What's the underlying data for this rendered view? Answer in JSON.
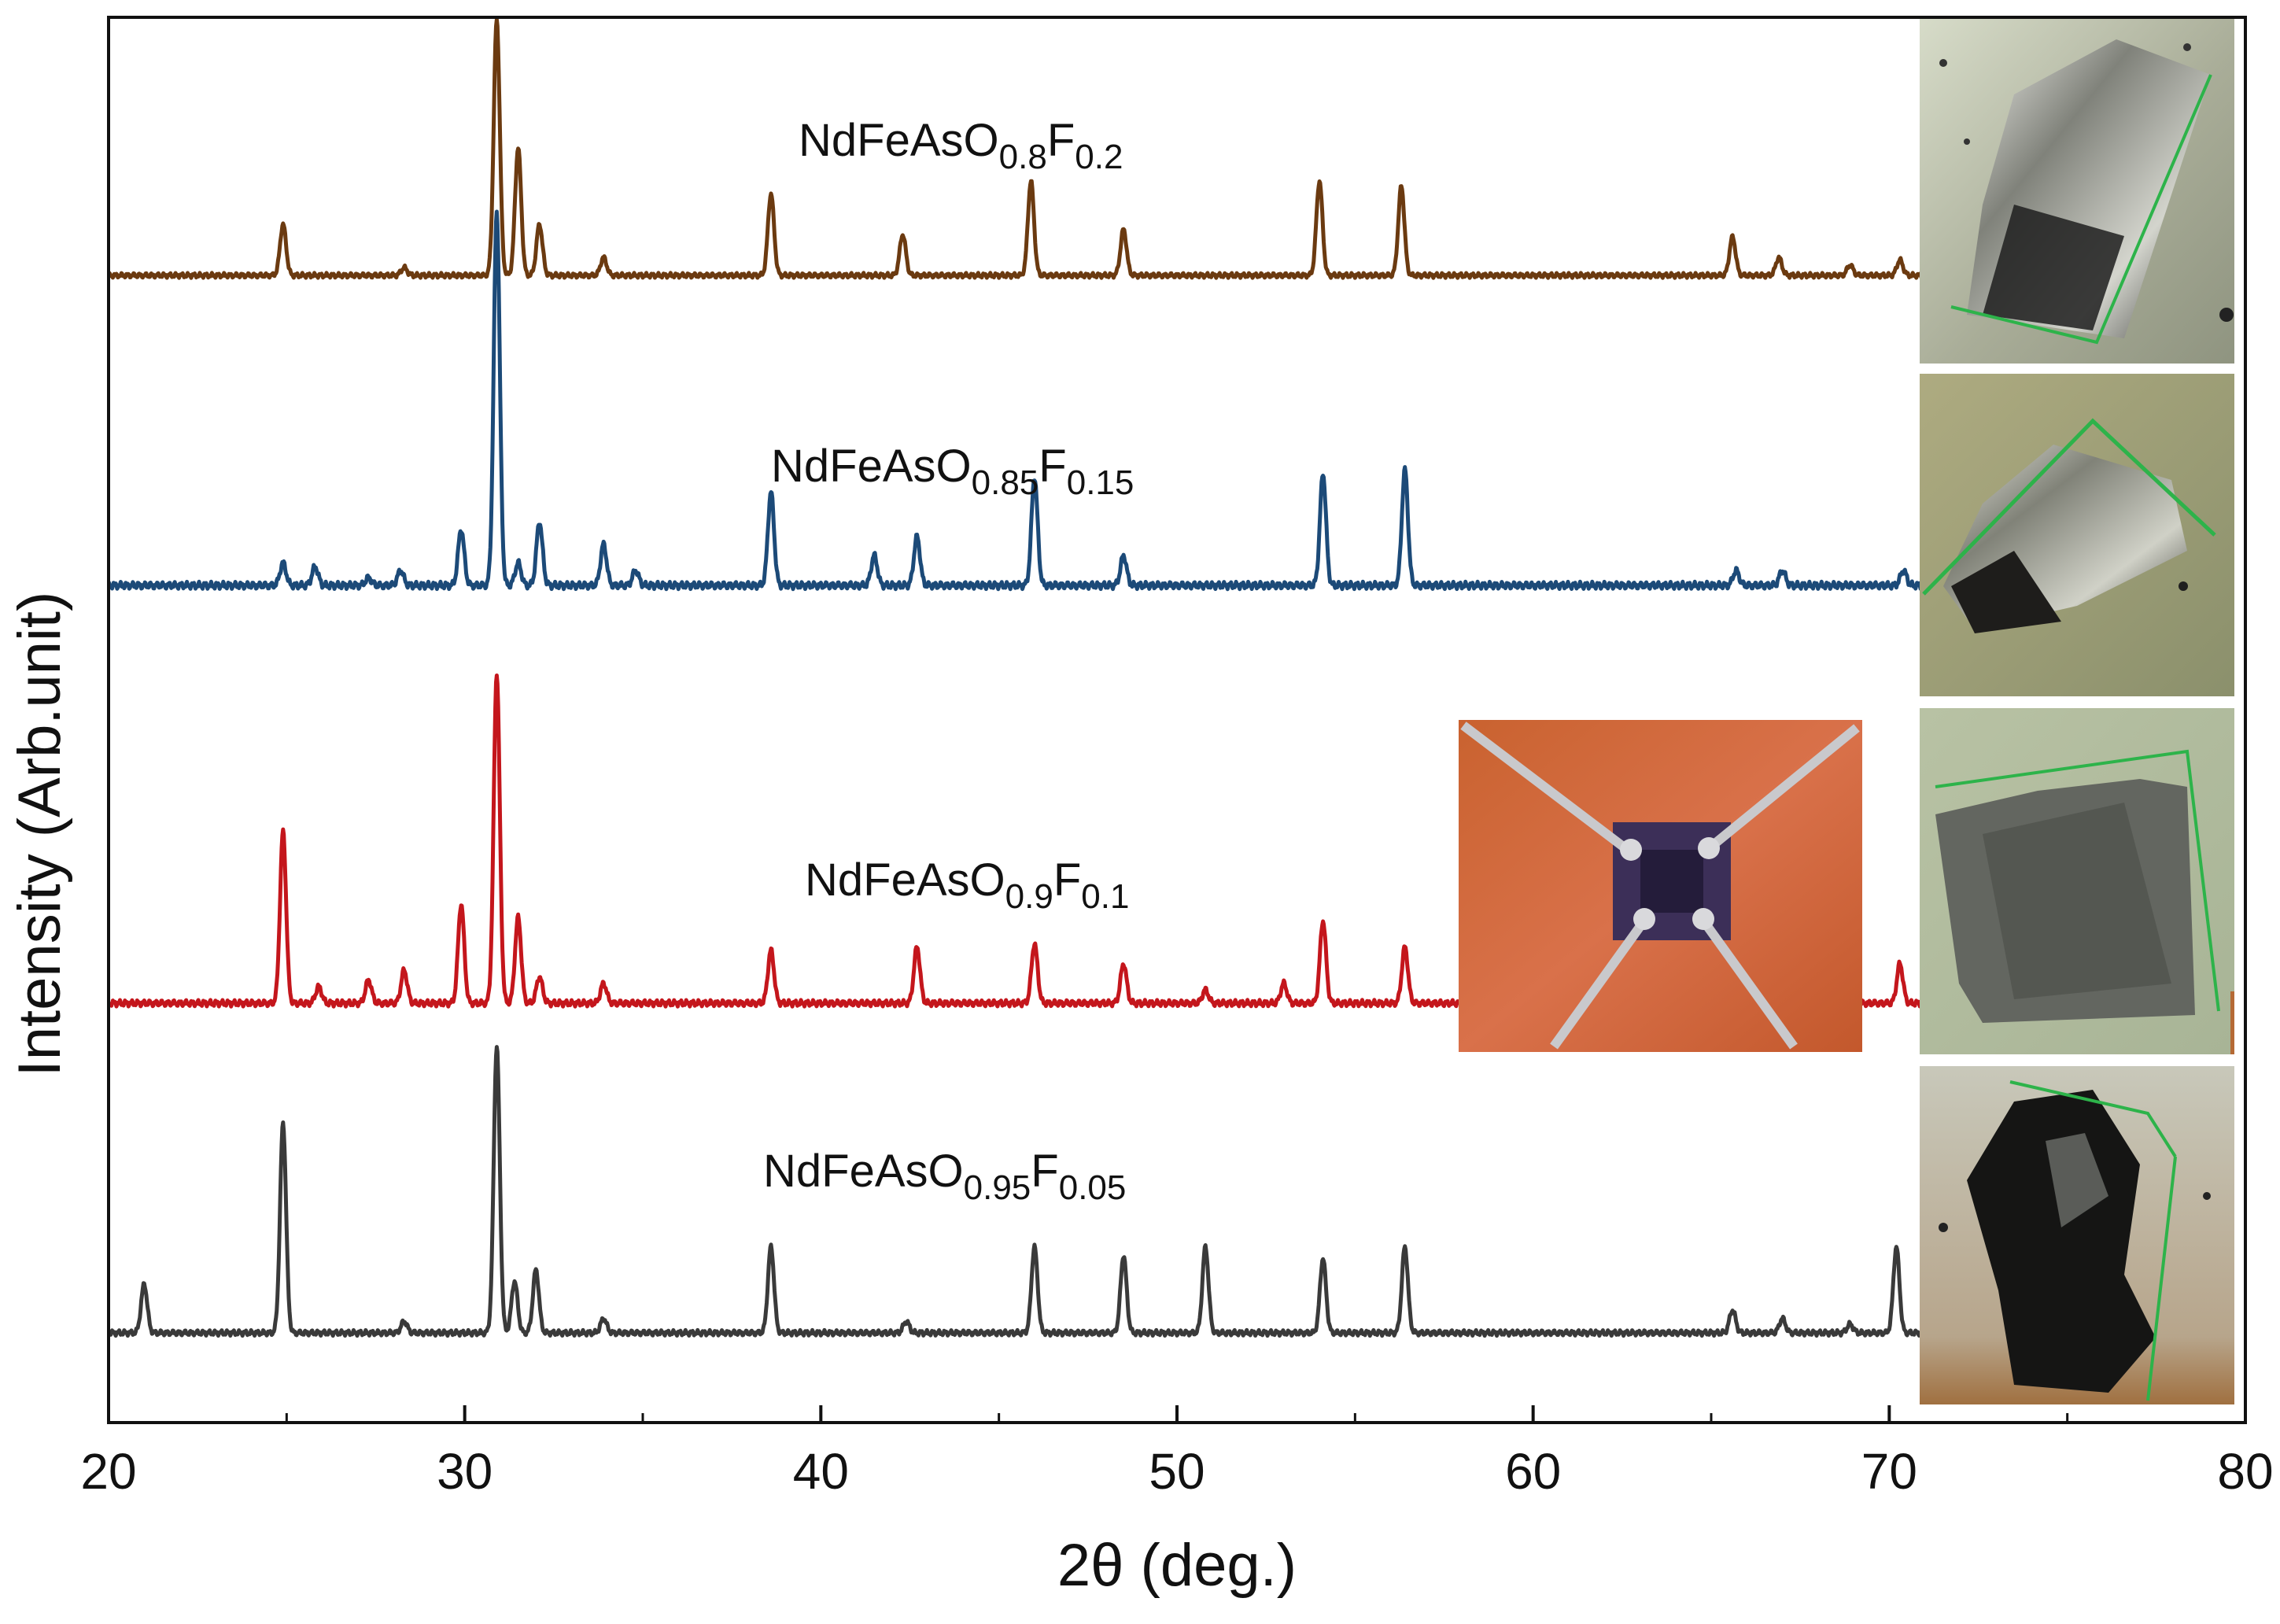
{
  "chart_data": {
    "type": "line",
    "title": "",
    "xlabel": "2θ (deg.)",
    "ylabel": "Intensity (Arb.unit)",
    "xlim": [
      20,
      80
    ],
    "xticks": [
      20,
      30,
      40,
      50,
      60,
      70,
      80
    ],
    "xtick_labels": [
      "20",
      "30",
      "40",
      "50",
      "60",
      "70",
      "80"
    ],
    "yticks": false,
    "grid": false,
    "legend": "none (series labelled inline above each trace)",
    "series": [
      {
        "name": "NdFeAsO0.8F0.2",
        "formula_parts": [
          {
            "t": "NdFeAsO",
            "sub": false
          },
          {
            "t": "0.8",
            "sub": true
          },
          {
            "t": "F",
            "sub": false
          },
          {
            "t": "0.2",
            "sub": true
          }
        ],
        "color": "#6b3a10",
        "offset": 3,
        "peaks": [
          {
            "x": 24.9,
            "y": 0.2
          },
          {
            "x": 28.3,
            "y": 0.03
          },
          {
            "x": 30.9,
            "y": 1.0
          },
          {
            "x": 31.5,
            "y": 0.5
          },
          {
            "x": 32.1,
            "y": 0.2
          },
          {
            "x": 33.9,
            "y": 0.07
          },
          {
            "x": 38.6,
            "y": 0.32
          },
          {
            "x": 42.3,
            "y": 0.16
          },
          {
            "x": 45.9,
            "y": 0.37
          },
          {
            "x": 48.5,
            "y": 0.18
          },
          {
            "x": 54.0,
            "y": 0.37
          },
          {
            "x": 56.3,
            "y": 0.35
          },
          {
            "x": 65.6,
            "y": 0.15
          },
          {
            "x": 66.9,
            "y": 0.07
          },
          {
            "x": 68.9,
            "y": 0.04
          },
          {
            "x": 70.3,
            "y": 0.06
          }
        ]
      },
      {
        "name": "NdFeAsO0.85F0.15",
        "formula_parts": [
          {
            "t": "NdFeAsO",
            "sub": false
          },
          {
            "t": "0.85",
            "sub": true
          },
          {
            "t": "F",
            "sub": false
          },
          {
            "t": "0.15",
            "sub": true
          }
        ],
        "color": "#1c4a78",
        "offset": 2,
        "peaks": [
          {
            "x": 24.9,
            "y": 0.06
          },
          {
            "x": 25.8,
            "y": 0.05
          },
          {
            "x": 27.3,
            "y": 0.02
          },
          {
            "x": 28.2,
            "y": 0.04
          },
          {
            "x": 29.9,
            "y": 0.15
          },
          {
            "x": 30.9,
            "y": 1.0
          },
          {
            "x": 31.5,
            "y": 0.06
          },
          {
            "x": 32.1,
            "y": 0.17
          },
          {
            "x": 33.9,
            "y": 0.11
          },
          {
            "x": 34.8,
            "y": 0.04
          },
          {
            "x": 38.6,
            "y": 0.25
          },
          {
            "x": 41.5,
            "y": 0.08
          },
          {
            "x": 42.7,
            "y": 0.13
          },
          {
            "x": 46.0,
            "y": 0.29
          },
          {
            "x": 48.5,
            "y": 0.08
          },
          {
            "x": 54.1,
            "y": 0.3
          },
          {
            "x": 56.4,
            "y": 0.31
          },
          {
            "x": 65.7,
            "y": 0.04
          },
          {
            "x": 67.0,
            "y": 0.04
          },
          {
            "x": 70.4,
            "y": 0.04
          }
        ]
      },
      {
        "name": "NdFeAsO0.9F0.1",
        "formula_parts": [
          {
            "t": "NdFeAsO",
            "sub": false
          },
          {
            "t": "0.9",
            "sub": true
          },
          {
            "t": "F",
            "sub": false
          },
          {
            "t": "0.1",
            "sub": true
          }
        ],
        "color": "#c4161c",
        "offset": 1,
        "peaks": [
          {
            "x": 24.9,
            "y": 0.52
          },
          {
            "x": 25.9,
            "y": 0.05
          },
          {
            "x": 27.3,
            "y": 0.07
          },
          {
            "x": 28.3,
            "y": 0.1
          },
          {
            "x": 29.9,
            "y": 0.3
          },
          {
            "x": 30.9,
            "y": 1.0
          },
          {
            "x": 31.5,
            "y": 0.26
          },
          {
            "x": 32.1,
            "y": 0.08
          },
          {
            "x": 33.9,
            "y": 0.06
          },
          {
            "x": 38.6,
            "y": 0.16
          },
          {
            "x": 42.7,
            "y": 0.17
          },
          {
            "x": 46.0,
            "y": 0.18
          },
          {
            "x": 48.5,
            "y": 0.12
          },
          {
            "x": 50.8,
            "y": 0.04
          },
          {
            "x": 53.0,
            "y": 0.06
          },
          {
            "x": 54.1,
            "y": 0.25
          },
          {
            "x": 56.4,
            "y": 0.17
          },
          {
            "x": 70.3,
            "y": 0.12
          }
        ]
      },
      {
        "name": "NdFeAsO0.95F0.05",
        "formula_parts": [
          {
            "t": "NdFeAsO",
            "sub": false
          },
          {
            "t": "0.95",
            "sub": true
          },
          {
            "t": "F",
            "sub": false
          },
          {
            "t": "0.05",
            "sub": true
          }
        ],
        "color": "#3a3a3a",
        "offset": 0,
        "peaks": [
          {
            "x": 21.0,
            "y": 0.17
          },
          {
            "x": 24.9,
            "y": 0.73
          },
          {
            "x": 28.3,
            "y": 0.04
          },
          {
            "x": 30.9,
            "y": 1.0
          },
          {
            "x": 31.4,
            "y": 0.18
          },
          {
            "x": 32.0,
            "y": 0.22
          },
          {
            "x": 33.9,
            "y": 0.05
          },
          {
            "x": 38.6,
            "y": 0.3
          },
          {
            "x": 42.4,
            "y": 0.04
          },
          {
            "x": 46.0,
            "y": 0.3
          },
          {
            "x": 48.5,
            "y": 0.27
          },
          {
            "x": 50.8,
            "y": 0.3
          },
          {
            "x": 54.1,
            "y": 0.26
          },
          {
            "x": 56.4,
            "y": 0.3
          },
          {
            "x": 65.6,
            "y": 0.08
          },
          {
            "x": 67.0,
            "y": 0.05
          },
          {
            "x": 68.9,
            "y": 0.03
          },
          {
            "x": 70.2,
            "y": 0.3
          }
        ]
      }
    ],
    "insets": [
      {
        "name": "crystal-photo-x02",
        "description": "optical micrograph of a single crystal",
        "series": "NdFeAsO0.8F0.2"
      },
      {
        "name": "crystal-photo-x015",
        "description": "optical micrograph of a single crystal",
        "series": "NdFeAsO0.85F0.15"
      },
      {
        "name": "crystal-photo-x01",
        "description": "optical micrograph of a single crystal",
        "series": "NdFeAsO0.9F0.1"
      },
      {
        "name": "crystal-photo-x005",
        "description": "optical micrograph of a single crystal",
        "series": "NdFeAsO0.95F0.05"
      },
      {
        "name": "contact-photo",
        "description": "crystal with four wire contacts"
      }
    ]
  }
}
